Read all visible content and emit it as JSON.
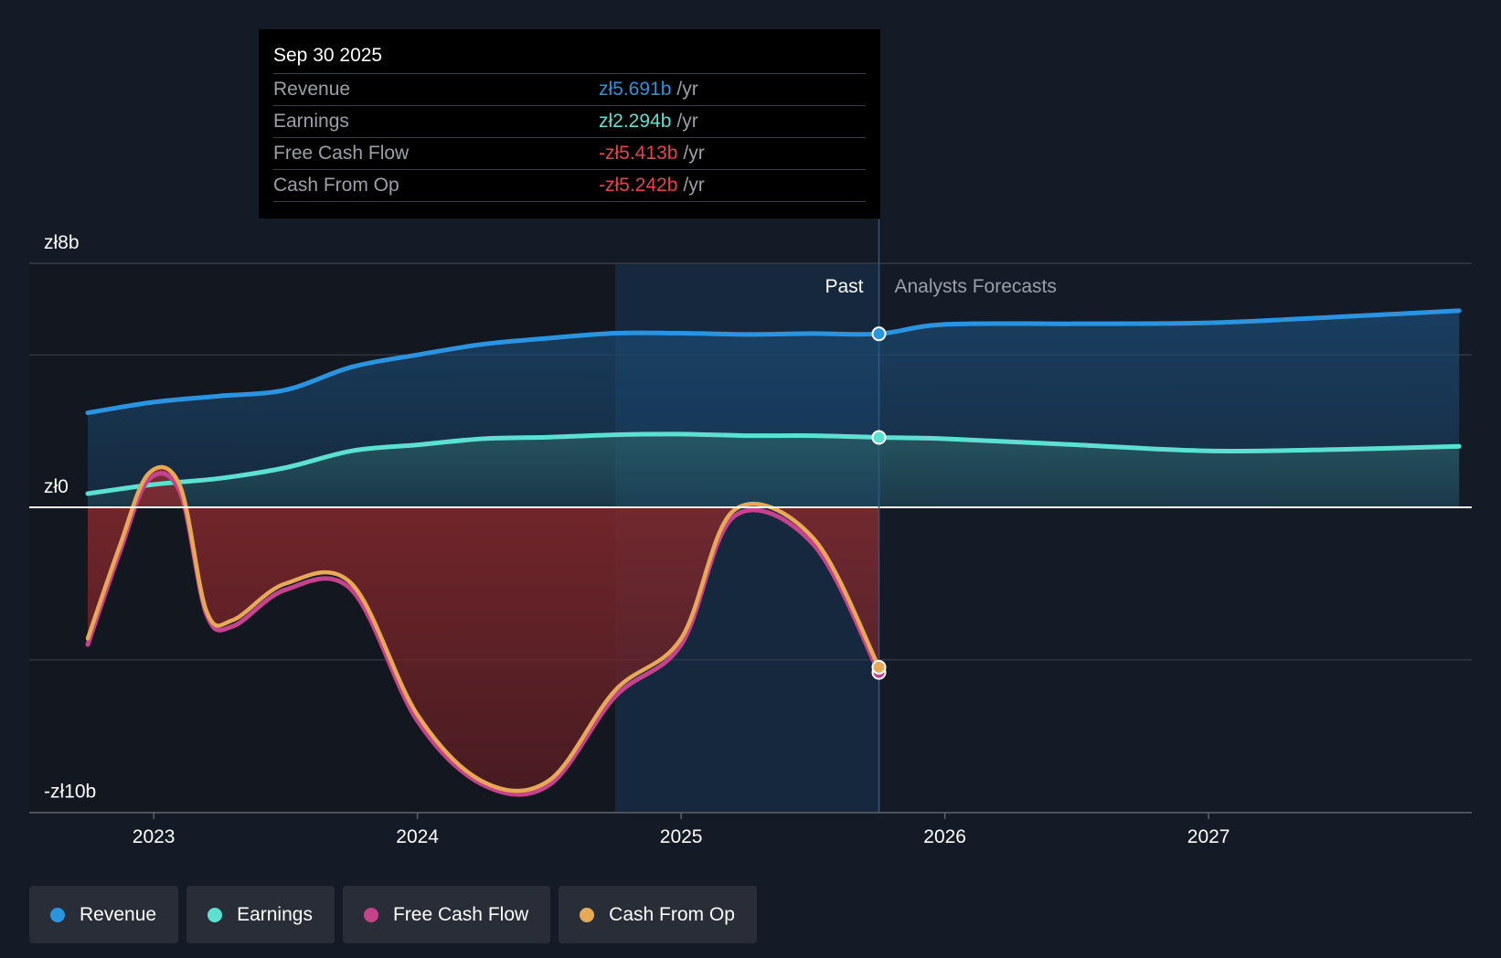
{
  "chart_data": {
    "type": "line",
    "title": "",
    "y_axis": {
      "min": -10,
      "max": 8,
      "unit": "zł billions",
      "tick_labels": [
        {
          "value": 8,
          "label": "zł8b"
        },
        {
          "value": 0,
          "label": "zł0"
        },
        {
          "value": -10,
          "label": "-zł10b"
        }
      ],
      "gridlines": [
        8,
        5,
        0,
        -5,
        -10
      ]
    },
    "x_axis": {
      "min": 2022.75,
      "max": 2027.95,
      "ticks": [
        {
          "value": 2023,
          "label": "2023"
        },
        {
          "value": 2024,
          "label": "2024"
        },
        {
          "value": 2025,
          "label": "2025"
        },
        {
          "value": 2026,
          "label": "2026"
        },
        {
          "value": 2027,
          "label": "2027"
        }
      ]
    },
    "past_label": "Past",
    "forecast_label": "Analysts Forecasts",
    "past_end": 2025.75,
    "highlight_start": 2024.75,
    "series": [
      {
        "name": "Revenue",
        "color": "#2b94e0",
        "past": [
          [
            2022.75,
            3.1
          ],
          [
            2023.0,
            3.45
          ],
          [
            2023.25,
            3.65
          ],
          [
            2023.5,
            3.85
          ],
          [
            2023.75,
            4.6
          ],
          [
            2024.0,
            5.0
          ],
          [
            2024.25,
            5.35
          ],
          [
            2024.5,
            5.55
          ],
          [
            2024.75,
            5.71
          ],
          [
            2025.0,
            5.71
          ],
          [
            2025.25,
            5.67
          ],
          [
            2025.5,
            5.7
          ],
          [
            2025.75,
            5.69
          ]
        ],
        "forecast": [
          [
            2025.75,
            5.69
          ],
          [
            2026.0,
            6.0
          ],
          [
            2026.5,
            6.02
          ],
          [
            2027.0,
            6.05
          ],
          [
            2027.5,
            6.25
          ],
          [
            2027.95,
            6.45
          ]
        ]
      },
      {
        "name": "Earnings",
        "color": "#5ce0d2",
        "past": [
          [
            2022.75,
            0.45
          ],
          [
            2023.0,
            0.75
          ],
          [
            2023.25,
            0.95
          ],
          [
            2023.5,
            1.3
          ],
          [
            2023.75,
            1.85
          ],
          [
            2024.0,
            2.05
          ],
          [
            2024.25,
            2.25
          ],
          [
            2024.5,
            2.3
          ],
          [
            2024.75,
            2.38
          ],
          [
            2025.0,
            2.4
          ],
          [
            2025.25,
            2.35
          ],
          [
            2025.5,
            2.35
          ],
          [
            2025.75,
            2.294
          ]
        ],
        "forecast": [
          [
            2025.75,
            2.294
          ],
          [
            2026.0,
            2.25
          ],
          [
            2026.5,
            2.05
          ],
          [
            2027.0,
            1.85
          ],
          [
            2027.5,
            1.9
          ],
          [
            2027.95,
            2.0
          ]
        ]
      },
      {
        "name": "Free Cash Flow",
        "color": "#c6428c",
        "past": [
          [
            2022.75,
            -4.5
          ],
          [
            2022.87,
            -1.5
          ],
          [
            2022.98,
            0.9
          ],
          [
            2023.1,
            0.5
          ],
          [
            2023.2,
            -3.5
          ],
          [
            2023.3,
            -3.9
          ],
          [
            2023.5,
            -2.7
          ],
          [
            2023.75,
            -2.7
          ],
          [
            2024.0,
            -7.0
          ],
          [
            2024.25,
            -9.1
          ],
          [
            2024.5,
            -9.1
          ],
          [
            2024.75,
            -6.2
          ],
          [
            2025.0,
            -4.5
          ],
          [
            2025.2,
            -0.3
          ],
          [
            2025.5,
            -1.2
          ],
          [
            2025.75,
            -5.413
          ]
        ],
        "forecast": []
      },
      {
        "name": "Cash From Op",
        "color": "#e8a957",
        "past": [
          [
            2022.75,
            -4.3
          ],
          [
            2022.87,
            -1.3
          ],
          [
            2022.98,
            1.1
          ],
          [
            2023.1,
            0.7
          ],
          [
            2023.2,
            -3.4
          ],
          [
            2023.3,
            -3.7
          ],
          [
            2023.5,
            -2.5
          ],
          [
            2023.75,
            -2.5
          ],
          [
            2024.0,
            -6.8
          ],
          [
            2024.25,
            -9.0
          ],
          [
            2024.5,
            -8.95
          ],
          [
            2024.75,
            -6.0
          ],
          [
            2025.0,
            -4.3
          ],
          [
            2025.2,
            -0.1
          ],
          [
            2025.5,
            -1.0
          ],
          [
            2025.75,
            -5.242
          ]
        ],
        "forecast": []
      }
    ]
  },
  "tooltip": {
    "date": "Sep 30 2025",
    "rows": [
      {
        "label": "Revenue",
        "value": "zł5.691b",
        "unit": "/yr",
        "color": "#2b94e0"
      },
      {
        "label": "Earnings",
        "value": "zł2.294b",
        "unit": "/yr",
        "color": "#5ce0d2"
      },
      {
        "label": "Free Cash Flow",
        "value": "-zł5.413b",
        "unit": "/yr",
        "color": "#e8424d"
      },
      {
        "label": "Cash From Op",
        "value": "-zł5.242b",
        "unit": "/yr",
        "color": "#e8424d"
      }
    ]
  },
  "legend": [
    {
      "label": "Revenue",
      "color": "#2b94e0"
    },
    {
      "label": "Earnings",
      "color": "#5ce0d2"
    },
    {
      "label": "Free Cash Flow",
      "color": "#c6428c"
    },
    {
      "label": "Cash From Op",
      "color": "#e8a957"
    }
  ]
}
